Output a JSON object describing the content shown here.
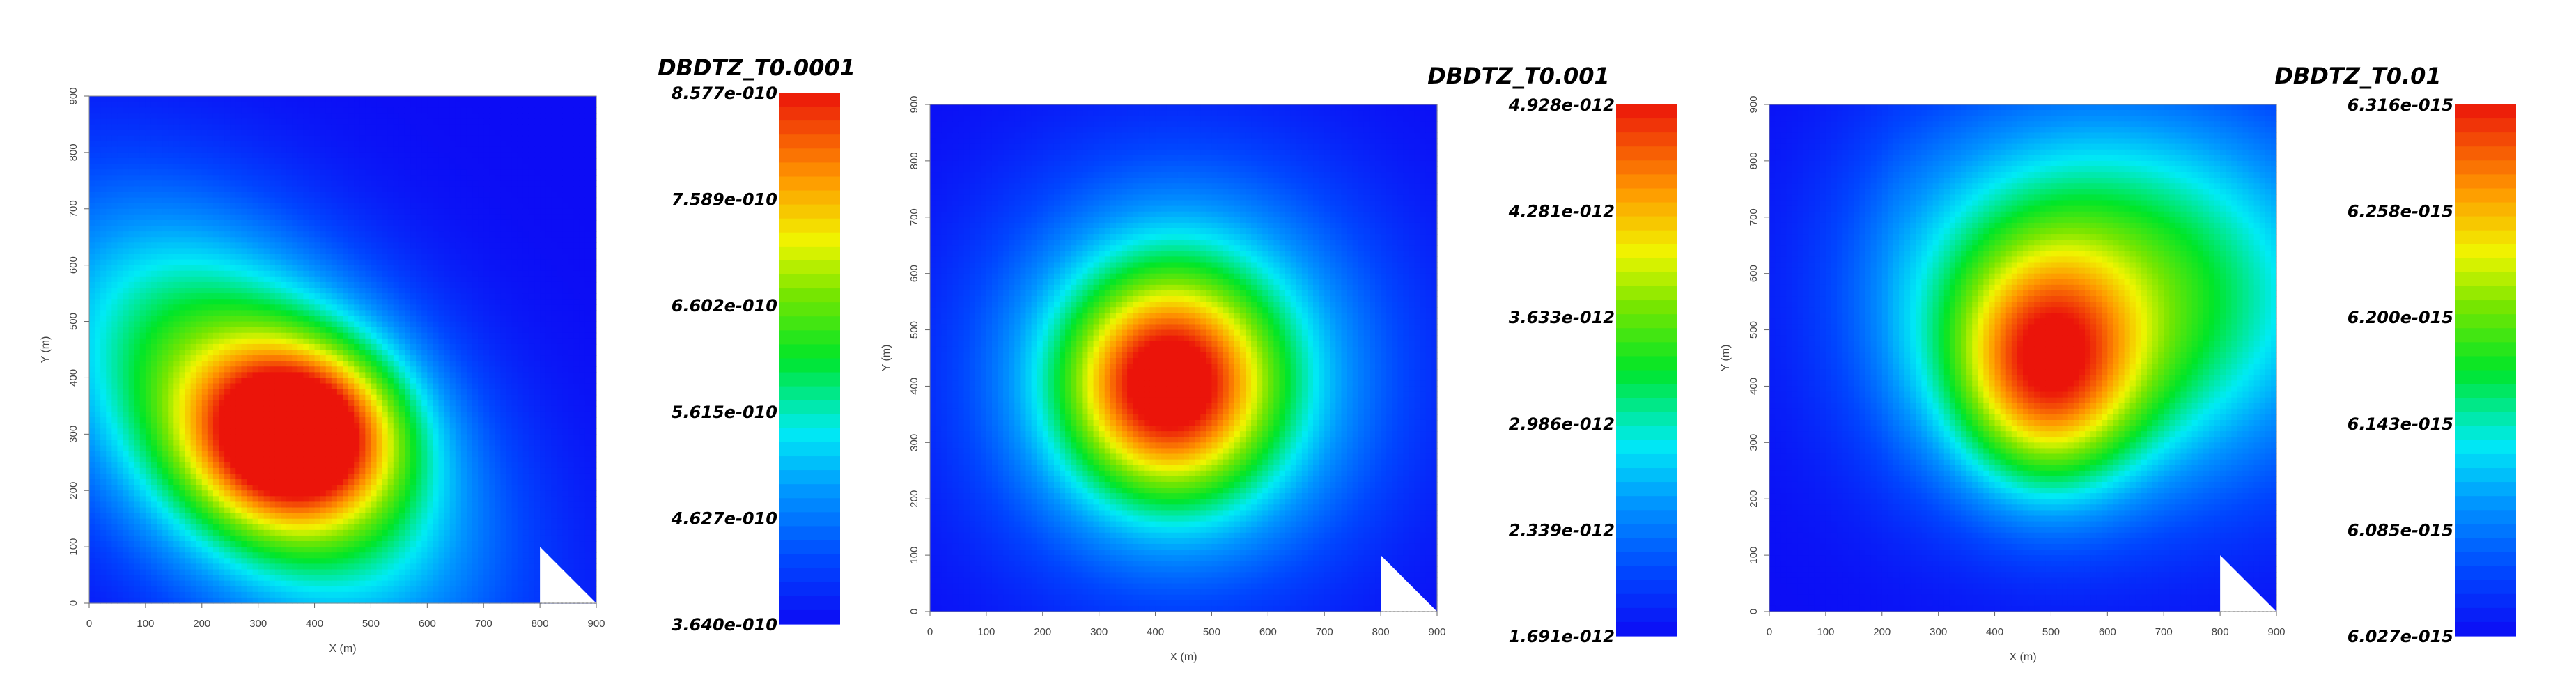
{
  "chart_data": [
    {
      "type": "heatmap",
      "title": "DBDTZ_T0.0001",
      "xlabel": "X (m)",
      "ylabel": "Y (m)",
      "xlim": [
        0,
        900
      ],
      "ylim": [
        0,
        900
      ],
      "xticks": [
        "0",
        "100",
        "200",
        "300",
        "400",
        "500",
        "600",
        "700",
        "800",
        "900"
      ],
      "yticks": [
        "0",
        "100",
        "200",
        "300",
        "400",
        "500",
        "600",
        "700",
        "800",
        "900"
      ],
      "colorbar": {
        "min": 3.64e-10,
        "max": 8.577e-10,
        "labels": [
          "8.577e-010",
          "7.589e-010",
          "6.602e-010",
          "5.615e-010",
          "4.627e-010",
          "3.640e-010"
        ]
      },
      "peak": {
        "x": 370,
        "y": 300,
        "level": 1.0
      },
      "no_data_region": "lower-right corner triangle, x 800–900, y 0–100"
    },
    {
      "type": "heatmap",
      "title": "DBDTZ_T0.001",
      "xlabel": "X (m)",
      "ylabel": "Y (m)",
      "xlim": [
        0,
        900
      ],
      "ylim": [
        0,
        900
      ],
      "xticks": [
        "0",
        "100",
        "200",
        "300",
        "400",
        "500",
        "600",
        "700",
        "800",
        "900"
      ],
      "yticks": [
        "0",
        "100",
        "200",
        "300",
        "400",
        "500",
        "600",
        "700",
        "800",
        "900"
      ],
      "colorbar": {
        "min": 1.691e-12,
        "max": 4.928e-12,
        "labels": [
          "4.928e-012",
          "4.281e-012",
          "3.633e-012",
          "2.986e-012",
          "2.339e-012",
          "1.691e-012"
        ]
      },
      "peak": {
        "x": 420,
        "y": 400,
        "level": 1.0
      },
      "no_data_region": "lower-right corner triangle, x 800–900, y 0–100"
    },
    {
      "type": "heatmap",
      "title": "DBDTZ_T0.01",
      "xlabel": "X (m)",
      "ylabel": "Y (m)",
      "xlim": [
        0,
        900
      ],
      "ylim": [
        0,
        900
      ],
      "xticks": [
        "0",
        "100",
        "200",
        "300",
        "400",
        "500",
        "600",
        "700",
        "800",
        "900"
      ],
      "yticks": [
        "0",
        "100",
        "200",
        "300",
        "400",
        "500",
        "600",
        "700",
        "800",
        "900"
      ],
      "colorbar": {
        "min": 6.027e-15,
        "max": 6.316e-15,
        "labels": [
          "6.316e-015",
          "6.258e-015",
          "6.200e-015",
          "6.143e-015",
          "6.085e-015",
          "6.027e-015"
        ]
      },
      "peak": {
        "x": 490,
        "y": 420,
        "level": 1.0
      },
      "no_data_region": "lower-right corner triangle, x 800–900, y 0–100"
    }
  ]
}
